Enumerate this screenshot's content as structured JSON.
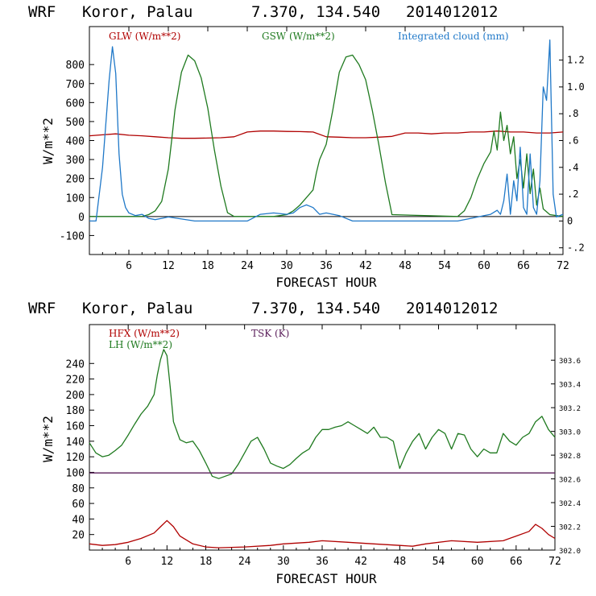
{
  "chart_data": [
    {
      "type": "line",
      "header": {
        "model": "WRF",
        "location": "Koror, Palau",
        "coords": "7.370, 134.540",
        "init": "2014012012"
      },
      "xlabel": "FORECAST HOUR",
      "ylabel": "W/m**2",
      "xlim": [
        0,
        72
      ],
      "ylim": [
        -200,
        1000
      ],
      "y2lim": [
        -0.25,
        1.45
      ],
      "x_ticks": [
        6,
        12,
        18,
        24,
        30,
        36,
        42,
        48,
        54,
        60,
        66,
        72
      ],
      "y_ticks": [
        -100,
        0,
        100,
        200,
        300,
        400,
        500,
        600,
        700,
        800
      ],
      "y2_ticks": [
        {
          "v": -0.2,
          "t": "-.2"
        },
        {
          "v": 0,
          "t": "0"
        },
        {
          "v": 0.2,
          "t": ".2"
        },
        {
          "v": 0.4,
          "t": ".4"
        },
        {
          "v": 0.6,
          "t": ".6"
        },
        {
          "v": 0.8,
          "t": ".8"
        },
        {
          "v": 1.0,
          "t": "1.0"
        },
        {
          "v": 1.2,
          "t": "1.2"
        }
      ],
      "legend": [
        "GLW (W/m**2)",
        "GSW (W/m**2)",
        "Integrated cloud (mm)"
      ],
      "series": [
        {
          "name": "GLW (W/m**2)",
          "color": "#b00000",
          "axis": "left",
          "x": [
            0,
            2,
            4,
            6,
            8,
            10,
            12,
            14,
            16,
            18,
            20,
            22,
            24,
            26,
            28,
            30,
            32,
            34,
            36,
            38,
            40,
            42,
            44,
            46,
            48,
            50,
            52,
            54,
            56,
            58,
            60,
            62,
            64,
            66,
            68,
            70,
            72
          ],
          "y": [
            425,
            430,
            435,
            428,
            425,
            420,
            415,
            412,
            412,
            413,
            415,
            420,
            445,
            450,
            450,
            448,
            447,
            445,
            420,
            418,
            415,
            415,
            418,
            422,
            440,
            440,
            435,
            440,
            440,
            445,
            445,
            450,
            445,
            445,
            440,
            440,
            445
          ]
        },
        {
          "name": "GSW (W/m**2)",
          "color": "#1f7a1f",
          "axis": "left",
          "x": [
            0,
            8,
            9,
            10,
            11,
            12,
            12.5,
            13,
            14,
            15,
            16,
            17,
            18,
            19,
            20,
            21,
            22,
            28,
            30,
            31,
            32,
            33,
            34,
            34.5,
            35,
            36,
            37,
            38,
            39,
            40,
            41,
            42,
            43,
            44,
            45,
            46,
            56,
            57,
            58,
            59,
            60,
            61,
            61.5,
            62,
            62.5,
            63,
            63.5,
            64,
            64.5,
            65,
            65.5,
            66,
            66.5,
            67,
            67.5,
            68,
            68.5,
            69,
            70,
            72
          ],
          "y": [
            0,
            0,
            10,
            30,
            80,
            250,
            400,
            560,
            760,
            850,
            820,
            730,
            570,
            350,
            160,
            20,
            0,
            0,
            10,
            30,
            60,
            100,
            140,
            230,
            300,
            380,
            560,
            760,
            840,
            850,
            800,
            720,
            560,
            380,
            180,
            10,
            0,
            30,
            100,
            200,
            280,
            340,
            450,
            350,
            550,
            400,
            480,
            330,
            420,
            200,
            300,
            150,
            330,
            120,
            250,
            60,
            150,
            40,
            10,
            0
          ]
        },
        {
          "name": "Integrated cloud (mm)",
          "color": "#1f78c8",
          "axis": "right",
          "x": [
            0,
            1,
            2,
            3,
            3.5,
            4,
            4.5,
            5,
            5.5,
            6,
            7,
            8,
            9,
            10,
            11,
            12,
            16,
            18,
            20,
            22,
            24,
            26,
            28,
            30,
            31,
            32,
            33,
            34,
            35,
            36,
            38,
            40,
            44,
            48,
            50,
            52,
            54,
            56,
            58,
            60,
            61,
            62,
            62.5,
            63,
            63.5,
            64,
            64.5,
            65,
            65.5,
            66,
            66.5,
            67,
            67.5,
            68,
            68.5,
            69,
            69.5,
            70,
            70.5,
            71,
            72
          ],
          "y": [
            0,
            0,
            0.4,
            1.05,
            1.3,
            1.1,
            0.5,
            0.2,
            0.1,
            0.06,
            0.04,
            0.05,
            0.02,
            0.01,
            0.02,
            0.03,
            0.0,
            0.0,
            0.0,
            0.0,
            0.0,
            0.05,
            0.06,
            0.05,
            0.06,
            0.1,
            0.12,
            0.1,
            0.05,
            0.06,
            0.04,
            0.0,
            0.0,
            0.0,
            0.0,
            0.0,
            0.0,
            0.0,
            0.02,
            0.04,
            0.05,
            0.08,
            0.05,
            0.15,
            0.35,
            0.05,
            0.3,
            0.15,
            0.55,
            0.1,
            0.05,
            0.5,
            0.1,
            0.05,
            0.3,
            1.0,
            0.9,
            1.35,
            0.2,
            0.03,
            0.05
          ]
        }
      ]
    },
    {
      "type": "line",
      "header": {
        "model": "WRF",
        "location": "Koror, Palau",
        "coords": "7.370, 134.540",
        "init": "2014012012"
      },
      "xlabel": "FORECAST HOUR",
      "ylabel": "W/m**2",
      "xlim": [
        0,
        72
      ],
      "ylim": [
        0,
        290
      ],
      "y2lim": [
        302.0,
        303.9
      ],
      "x_ticks": [
        6,
        12,
        18,
        24,
        30,
        36,
        42,
        48,
        54,
        60,
        66,
        72
      ],
      "y_ticks": [
        20,
        40,
        60,
        80,
        100,
        120,
        140,
        160,
        180,
        200,
        220,
        240
      ],
      "y2_ticks": [
        {
          "v": 302.0,
          "t": "302.0"
        },
        {
          "v": 302.2,
          "t": "302.2"
        },
        {
          "v": 302.4,
          "t": "302.4"
        },
        {
          "v": 302.6,
          "t": "302.6"
        },
        {
          "v": 302.8,
          "t": "302.8"
        },
        {
          "v": 303.0,
          "t": "303.0"
        },
        {
          "v": 303.2,
          "t": "303.2"
        },
        {
          "v": 303.4,
          "t": "303.4"
        },
        {
          "v": 303.6,
          "t": "303.6"
        }
      ],
      "legend": [
        "HFX (W/m**2)",
        "LH  (W/m**2)",
        "TSK (K)"
      ],
      "series": [
        {
          "name": "HFX (W/m**2)",
          "color": "#b00000",
          "axis": "left",
          "x": [
            0,
            2,
            4,
            6,
            8,
            10,
            11,
            12,
            13,
            14,
            16,
            18,
            20,
            24,
            28,
            30,
            34,
            36,
            40,
            44,
            48,
            50,
            52,
            56,
            60,
            64,
            66,
            68,
            69,
            70,
            71,
            72
          ],
          "y": [
            8,
            6,
            7,
            10,
            15,
            22,
            30,
            38,
            30,
            18,
            8,
            4,
            3,
            4,
            6,
            8,
            10,
            12,
            10,
            8,
            6,
            5,
            8,
            12,
            10,
            12,
            18,
            24,
            33,
            28,
            20,
            15
          ]
        },
        {
          "name": "LH  (W/m**2)",
          "color": "#1f7a1f",
          "axis": "left",
          "x": [
            0,
            1,
            2,
            3,
            4,
            5,
            6,
            7,
            8,
            9,
            10,
            10.5,
            11,
            11.5,
            12,
            12.5,
            13,
            14,
            15,
            16,
            17,
            18,
            19,
            20,
            21,
            22,
            23,
            24,
            25,
            26,
            27,
            28,
            29,
            30,
            31,
            32,
            33,
            34,
            35,
            36,
            37,
            38,
            39,
            40,
            41,
            42,
            43,
            44,
            45,
            46,
            47,
            48,
            49,
            50,
            51,
            52,
            53,
            54,
            55,
            56,
            57,
            58,
            59,
            60,
            61,
            62,
            63,
            64,
            65,
            66,
            67,
            68,
            69,
            70,
            71,
            72
          ],
          "y": [
            138,
            125,
            120,
            122,
            128,
            135,
            148,
            162,
            175,
            185,
            200,
            225,
            245,
            258,
            250,
            210,
            165,
            142,
            138,
            140,
            128,
            112,
            95,
            92,
            95,
            98,
            110,
            125,
            140,
            145,
            130,
            112,
            108,
            105,
            110,
            118,
            125,
            130,
            145,
            155,
            155,
            158,
            160,
            165,
            160,
            155,
            150,
            158,
            145,
            145,
            140,
            105,
            125,
            140,
            150,
            130,
            145,
            155,
            150,
            130,
            150,
            148,
            130,
            120,
            130,
            125,
            125,
            150,
            140,
            135,
            145,
            150,
            165,
            172,
            155,
            145
          ]
        },
        {
          "name": "TSK (K)",
          "color": "#5a1e5a",
          "axis": "right",
          "x": [
            0,
            72
          ],
          "y": [
            302.65,
            302.65
          ]
        }
      ]
    }
  ]
}
